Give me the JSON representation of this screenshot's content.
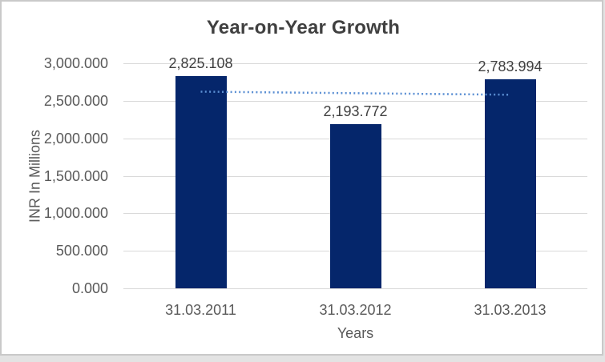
{
  "page": {
    "background": "#e3e3e3",
    "chart_background": "#ffffff",
    "chart_border": "#c9c9c9"
  },
  "chart_data": {
    "type": "bar",
    "title": "Year-on-Year Growth",
    "xlabel": "Years",
    "ylabel": "INR In Millions",
    "categories": [
      "31.03.2011",
      "31.03.2012",
      "31.03.2013"
    ],
    "values": [
      2825.108,
      2193.772,
      2783.994
    ],
    "value_labels": [
      "2,825.108",
      "2,193.772",
      "2,783.994"
    ],
    "ylim": [
      0,
      3000
    ],
    "ytick_step": 500,
    "ytick_labels": [
      "0.000",
      "500.000",
      "1,000.000",
      "1,500.000",
      "2,000.000",
      "2,500.000",
      "3,000.000"
    ],
    "grid": true,
    "legend": false,
    "bar_color": "#05266b",
    "trendline": {
      "type": "linear",
      "style": "dotted",
      "color": "#5b8fd3"
    },
    "colors": {
      "title_text": "#404040",
      "data_label_text": "#404040",
      "axis_text": "#595959",
      "gridline": "#d9d9d9"
    }
  }
}
